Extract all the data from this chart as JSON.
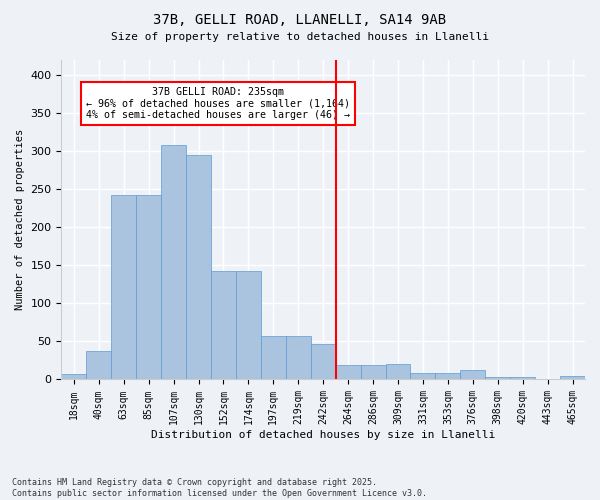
{
  "title": "37B, GELLI ROAD, LLANELLI, SA14 9AB",
  "subtitle": "Size of property relative to detached houses in Llanelli",
  "xlabel": "Distribution of detached houses by size in Llanelli",
  "ylabel": "Number of detached properties",
  "footnote": "Contains HM Land Registry data © Crown copyright and database right 2025.\nContains public sector information licensed under the Open Government Licence v3.0.",
  "bin_labels": [
    "18sqm",
    "40sqm",
    "63sqm",
    "85sqm",
    "107sqm",
    "130sqm",
    "152sqm",
    "174sqm",
    "197sqm",
    "219sqm",
    "242sqm",
    "264sqm",
    "286sqm",
    "309sqm",
    "331sqm",
    "353sqm",
    "376sqm",
    "398sqm",
    "420sqm",
    "443sqm",
    "465sqm"
  ],
  "bar_values": [
    7,
    38,
    243,
    243,
    308,
    295,
    143,
    143,
    57,
    57,
    47,
    19,
    19,
    20,
    8,
    8,
    12,
    3,
    3,
    1,
    4
  ],
  "bar_color": "#aac4e0",
  "bar_edgecolor": "#5b9bd5",
  "vline_x": 10.5,
  "vline_color": "red",
  "annotation_title": "37B GELLI ROAD: 235sqm",
  "annotation_line1": "← 96% of detached houses are smaller (1,164)",
  "annotation_line2": "4% of semi-detached houses are larger (46) →",
  "annotation_box_color": "red",
  "annotation_text_color": "black",
  "annotation_bg": "white",
  "ylim": [
    0,
    420
  ],
  "yticks": [
    0,
    50,
    100,
    150,
    200,
    250,
    300,
    350,
    400
  ],
  "background_color": "#eef2f7",
  "grid_color": "white"
}
